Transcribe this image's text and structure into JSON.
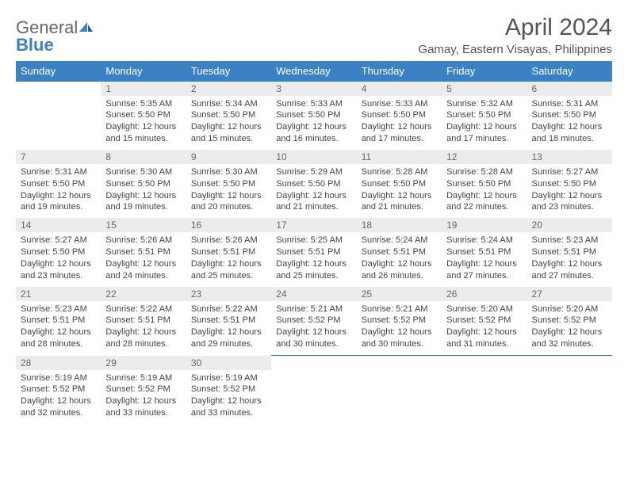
{
  "brand": {
    "part1": "General",
    "part2": "Blue"
  },
  "title": "April 2024",
  "location": "Gamay, Eastern Visayas, Philippines",
  "colors": {
    "header_bg": "#3b82c4",
    "header_fg": "#ffffff",
    "daynum_bg": "#ececec",
    "row_border": "#3b6fa0",
    "text": "#444444",
    "title_color": "#555555"
  },
  "day_names": [
    "Sunday",
    "Monday",
    "Tuesday",
    "Wednesday",
    "Thursday",
    "Friday",
    "Saturday"
  ],
  "weeks": [
    [
      null,
      {
        "n": "1",
        "sr": "5:35 AM",
        "ss": "5:50 PM",
        "dl": "12 hours and 15 minutes."
      },
      {
        "n": "2",
        "sr": "5:34 AM",
        "ss": "5:50 PM",
        "dl": "12 hours and 15 minutes."
      },
      {
        "n": "3",
        "sr": "5:33 AM",
        "ss": "5:50 PM",
        "dl": "12 hours and 16 minutes."
      },
      {
        "n": "4",
        "sr": "5:33 AM",
        "ss": "5:50 PM",
        "dl": "12 hours and 17 minutes."
      },
      {
        "n": "5",
        "sr": "5:32 AM",
        "ss": "5:50 PM",
        "dl": "12 hours and 17 minutes."
      },
      {
        "n": "6",
        "sr": "5:31 AM",
        "ss": "5:50 PM",
        "dl": "12 hours and 18 minutes."
      }
    ],
    [
      {
        "n": "7",
        "sr": "5:31 AM",
        "ss": "5:50 PM",
        "dl": "12 hours and 19 minutes."
      },
      {
        "n": "8",
        "sr": "5:30 AM",
        "ss": "5:50 PM",
        "dl": "12 hours and 19 minutes."
      },
      {
        "n": "9",
        "sr": "5:30 AM",
        "ss": "5:50 PM",
        "dl": "12 hours and 20 minutes."
      },
      {
        "n": "10",
        "sr": "5:29 AM",
        "ss": "5:50 PM",
        "dl": "12 hours and 21 minutes."
      },
      {
        "n": "11",
        "sr": "5:28 AM",
        "ss": "5:50 PM",
        "dl": "12 hours and 21 minutes."
      },
      {
        "n": "12",
        "sr": "5:28 AM",
        "ss": "5:50 PM",
        "dl": "12 hours and 22 minutes."
      },
      {
        "n": "13",
        "sr": "5:27 AM",
        "ss": "5:50 PM",
        "dl": "12 hours and 23 minutes."
      }
    ],
    [
      {
        "n": "14",
        "sr": "5:27 AM",
        "ss": "5:50 PM",
        "dl": "12 hours and 23 minutes."
      },
      {
        "n": "15",
        "sr": "5:26 AM",
        "ss": "5:51 PM",
        "dl": "12 hours and 24 minutes."
      },
      {
        "n": "16",
        "sr": "5:26 AM",
        "ss": "5:51 PM",
        "dl": "12 hours and 25 minutes."
      },
      {
        "n": "17",
        "sr": "5:25 AM",
        "ss": "5:51 PM",
        "dl": "12 hours and 25 minutes."
      },
      {
        "n": "18",
        "sr": "5:24 AM",
        "ss": "5:51 PM",
        "dl": "12 hours and 26 minutes."
      },
      {
        "n": "19",
        "sr": "5:24 AM",
        "ss": "5:51 PM",
        "dl": "12 hours and 27 minutes."
      },
      {
        "n": "20",
        "sr": "5:23 AM",
        "ss": "5:51 PM",
        "dl": "12 hours and 27 minutes."
      }
    ],
    [
      {
        "n": "21",
        "sr": "5:23 AM",
        "ss": "5:51 PM",
        "dl": "12 hours and 28 minutes."
      },
      {
        "n": "22",
        "sr": "5:22 AM",
        "ss": "5:51 PM",
        "dl": "12 hours and 28 minutes."
      },
      {
        "n": "23",
        "sr": "5:22 AM",
        "ss": "5:51 PM",
        "dl": "12 hours and 29 minutes."
      },
      {
        "n": "24",
        "sr": "5:21 AM",
        "ss": "5:52 PM",
        "dl": "12 hours and 30 minutes."
      },
      {
        "n": "25",
        "sr": "5:21 AM",
        "ss": "5:52 PM",
        "dl": "12 hours and 30 minutes."
      },
      {
        "n": "26",
        "sr": "5:20 AM",
        "ss": "5:52 PM",
        "dl": "12 hours and 31 minutes."
      },
      {
        "n": "27",
        "sr": "5:20 AM",
        "ss": "5:52 PM",
        "dl": "12 hours and 32 minutes."
      }
    ],
    [
      {
        "n": "28",
        "sr": "5:19 AM",
        "ss": "5:52 PM",
        "dl": "12 hours and 32 minutes."
      },
      {
        "n": "29",
        "sr": "5:19 AM",
        "ss": "5:52 PM",
        "dl": "12 hours and 33 minutes."
      },
      {
        "n": "30",
        "sr": "5:19 AM",
        "ss": "5:52 PM",
        "dl": "12 hours and 33 minutes."
      },
      null,
      null,
      null,
      null
    ]
  ],
  "labels": {
    "sunrise": "Sunrise: ",
    "sunset": "Sunset: ",
    "daylight": "Daylight: "
  }
}
